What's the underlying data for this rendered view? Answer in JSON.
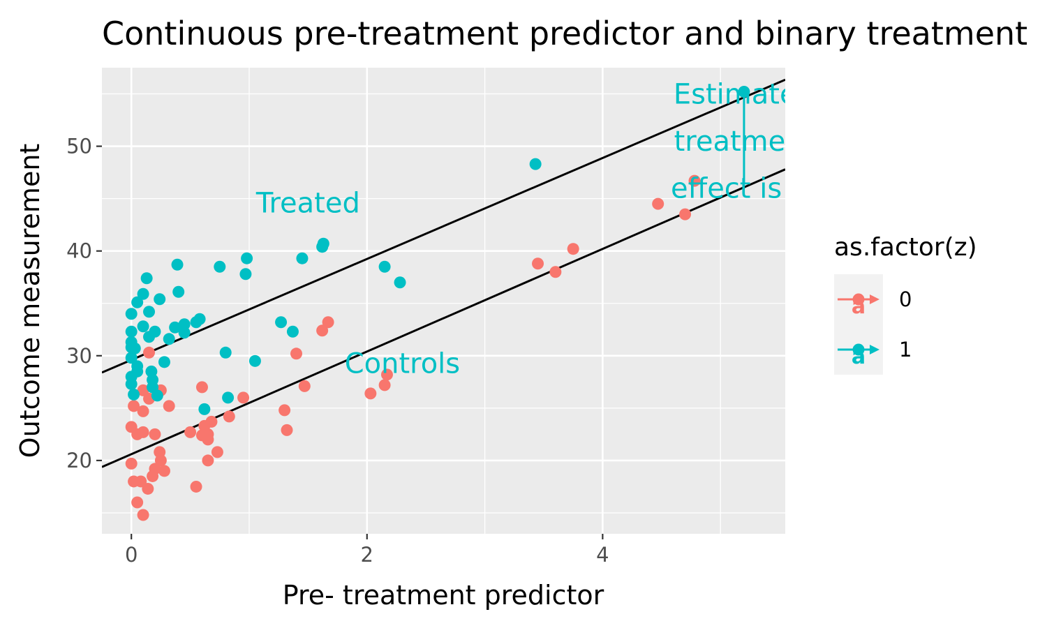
{
  "chart_data": {
    "type": "scatter",
    "title": "Continuous pre-treatment predictor and binary treatment",
    "xlabel": "Pre- treatment predictor",
    "ylabel": "Outcome measurement",
    "xlim": [
      -0.25,
      5.55
    ],
    "ylim": [
      13.0,
      57.5
    ],
    "x_ticks": [
      0,
      2,
      4
    ],
    "y_ticks": [
      20,
      30,
      40,
      50
    ],
    "grid": true,
    "legend": {
      "title": "as.factor(z)",
      "placement": "right",
      "entries": [
        {
          "label": "0",
          "color": "#F8766D"
        },
        {
          "label": "1",
          "color": "#00BFC4"
        }
      ]
    },
    "series": [
      {
        "name": "0",
        "color": "#F8766D",
        "points": [
          [
            0.0,
            19.7
          ],
          [
            0.02,
            18.0
          ],
          [
            0.05,
            16.0
          ],
          [
            0.1,
            14.8
          ],
          [
            0.08,
            18.0
          ],
          [
            0.14,
            17.3
          ],
          [
            0.18,
            18.5
          ],
          [
            0.2,
            19.2
          ],
          [
            0.25,
            20.0
          ],
          [
            0.28,
            19.0
          ],
          [
            0.24,
            20.8
          ],
          [
            0.0,
            23.2
          ],
          [
            0.05,
            22.5
          ],
          [
            0.1,
            22.7
          ],
          [
            0.1,
            24.7
          ],
          [
            0.02,
            25.2
          ],
          [
            0.15,
            25.9
          ],
          [
            0.15,
            30.3
          ],
          [
            0.1,
            26.7
          ],
          [
            0.25,
            26.7
          ],
          [
            0.2,
            22.5
          ],
          [
            0.32,
            25.2
          ],
          [
            0.5,
            22.7
          ],
          [
            0.55,
            17.5
          ],
          [
            0.6,
            22.4
          ],
          [
            0.6,
            27.0
          ],
          [
            0.62,
            23.3
          ],
          [
            0.65,
            22.0
          ],
          [
            0.65,
            22.5
          ],
          [
            0.68,
            23.7
          ],
          [
            0.65,
            20.0
          ],
          [
            0.73,
            20.8
          ],
          [
            0.83,
            24.2
          ],
          [
            0.95,
            26.0
          ],
          [
            1.3,
            24.8
          ],
          [
            1.32,
            22.9
          ],
          [
            1.4,
            30.2
          ],
          [
            1.47,
            27.1
          ],
          [
            1.62,
            32.4
          ],
          [
            1.67,
            33.2
          ],
          [
            2.03,
            26.4
          ],
          [
            2.15,
            27.2
          ],
          [
            2.17,
            28.2
          ],
          [
            3.45,
            38.8
          ],
          [
            3.6,
            38.0
          ],
          [
            3.75,
            40.2
          ],
          [
            4.47,
            44.5
          ],
          [
            4.7,
            43.5
          ],
          [
            4.78,
            46.7
          ]
        ]
      },
      {
        "name": "1",
        "color": "#00BFC4",
        "points": [
          [
            0.0,
            34.0
          ],
          [
            0.0,
            32.3
          ],
          [
            0.0,
            31.3
          ],
          [
            0.0,
            30.8
          ],
          [
            0.0,
            29.8
          ],
          [
            0.0,
            28.0
          ],
          [
            0.0,
            27.3
          ],
          [
            0.02,
            26.3
          ],
          [
            0.03,
            30.7
          ],
          [
            0.05,
            29.0
          ],
          [
            0.05,
            28.5
          ],
          [
            0.05,
            35.1
          ],
          [
            0.1,
            35.9
          ],
          [
            0.1,
            32.8
          ],
          [
            0.13,
            37.4
          ],
          [
            0.15,
            31.8
          ],
          [
            0.15,
            34.2
          ],
          [
            0.17,
            28.5
          ],
          [
            0.18,
            27.7
          ],
          [
            0.18,
            27.0
          ],
          [
            0.2,
            32.3
          ],
          [
            0.22,
            26.2
          ],
          [
            0.24,
            35.4
          ],
          [
            0.28,
            29.4
          ],
          [
            0.32,
            31.6
          ],
          [
            0.37,
            32.7
          ],
          [
            0.39,
            38.7
          ],
          [
            0.4,
            36.1
          ],
          [
            0.45,
            33.0
          ],
          [
            0.45,
            32.2
          ],
          [
            0.55,
            33.2
          ],
          [
            0.58,
            33.5
          ],
          [
            0.62,
            24.9
          ],
          [
            0.75,
            38.5
          ],
          [
            0.8,
            30.3
          ],
          [
            0.82,
            26.0
          ],
          [
            0.97,
            37.8
          ],
          [
            0.98,
            39.3
          ],
          [
            1.05,
            29.5
          ],
          [
            1.27,
            33.2
          ],
          [
            1.37,
            32.3
          ],
          [
            1.45,
            39.3
          ],
          [
            1.62,
            40.4
          ],
          [
            1.63,
            40.7
          ],
          [
            2.15,
            38.5
          ],
          [
            2.28,
            37.0
          ],
          [
            3.43,
            48.3
          ]
        ]
      }
    ],
    "fit_lines": [
      {
        "group": "1",
        "intercept": 29.6,
        "slope": 4.82
      },
      {
        "group": "0",
        "intercept": 20.6,
        "slope": 4.9
      }
    ],
    "annotations": [
      {
        "text": "Treated",
        "x": 1.5,
        "y": 44.6,
        "color": "#00BFC4"
      },
      {
        "text": "Controls",
        "x": 2.3,
        "y": 29.3,
        "color": "#00BFC4"
      },
      {
        "text": "Estimated",
        "x": 5.2,
        "y": 55.0,
        "color": "#00BFC4"
      },
      {
        "text": "treatment",
        "x": 5.2,
        "y": 50.5,
        "color": "#00BFC4"
      },
      {
        "text": "effect is",
        "x": 5.05,
        "y": 46.0,
        "color": "#00BFC4"
      }
    ],
    "effect_bracket": {
      "x": 5.2,
      "y_low": 46.5,
      "y_high": 55.2,
      "color": "#00BFC4"
    }
  }
}
